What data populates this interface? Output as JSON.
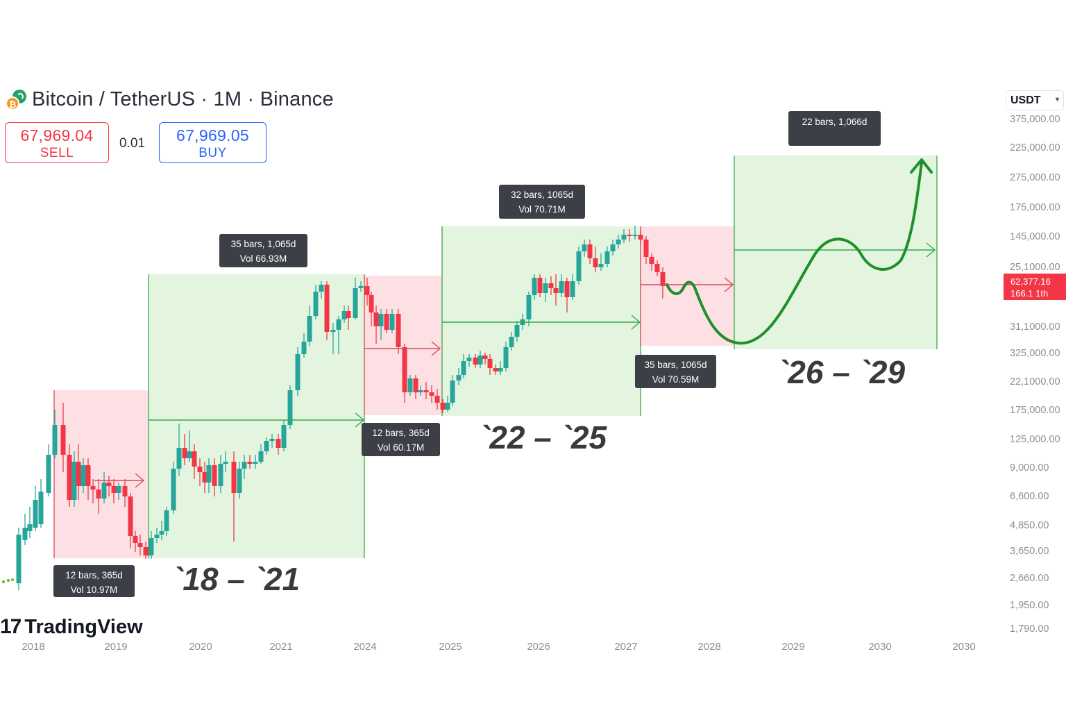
{
  "header": {
    "title": "Bitcoin / TetherUS · 1M · Binance",
    "sell_price": "67,969.04",
    "sell_label": "SELL",
    "spread": "0.01",
    "buy_price": "67,969.05",
    "buy_label": "BUY"
  },
  "currency_selector": {
    "value": "USDT"
  },
  "price_tag": {
    "line1": "62,377.16",
    "line2": "166.1 1th"
  },
  "watermark": "TradingView",
  "colors": {
    "up": "#26a69a",
    "down": "#f23645",
    "green_zone": "#e3f5df",
    "red_zone": "#fce0e3",
    "green_line": "#1f8f2a"
  },
  "chart_data": {
    "type": "candlestick",
    "x_tick_labels": [
      "2018",
      "2019",
      "2020",
      "2021",
      "2024",
      "2025",
      "2026",
      "2027",
      "2028",
      "2029",
      "2030",
      "2030"
    ],
    "y_tick_labels": [
      "375,000.00",
      "225,000.00",
      "275,000.00",
      "175,000.00",
      "145,000.00",
      "25,1000.00",
      "31,1000.00",
      "325,000.00",
      "22,1000.00",
      "175,000.00",
      "125,000.00",
      "9,000.00",
      "6,600.00",
      "4,850.00",
      "3,650.00",
      "2,660.00",
      "1,950.00",
      "1,790.00"
    ],
    "zones": [
      {
        "type": "bear",
        "from": "2018",
        "to": "2019"
      },
      {
        "type": "bull",
        "from": "2019",
        "to": "2021"
      },
      {
        "type": "bear",
        "from": "2021",
        "to": "2025"
      },
      {
        "type": "bull",
        "from": "2025",
        "to": "2027"
      },
      {
        "type": "bear",
        "from": "2027",
        "to": "2028"
      },
      {
        "type": "bull",
        "from": "2028",
        "to": "2030"
      }
    ],
    "measure_labels": [
      {
        "line1": "12 bars, 365d",
        "line2": "Vol 10.97M"
      },
      {
        "line1": "35 bars, 1,065d",
        "line2": "Vol 66.93M"
      },
      {
        "line1": "12 bars, 365d",
        "line2": "Vol 60.17M"
      },
      {
        "line1": "32 bars, 1065d",
        "line2": "Vol 70.71M"
      },
      {
        "line1": "35 bars, 1065d",
        "line2": "Vol 70.59M"
      },
      {
        "line1": "22 bars, 1,066d",
        "line2": ""
      }
    ],
    "cycle_labels": [
      "`18 – `21",
      "`22 – `25",
      "`26 – `29"
    ],
    "projection": "hand-drawn green path forecasting a dip, recovery, pullback and breakout in the `26 – `29 cycle"
  }
}
